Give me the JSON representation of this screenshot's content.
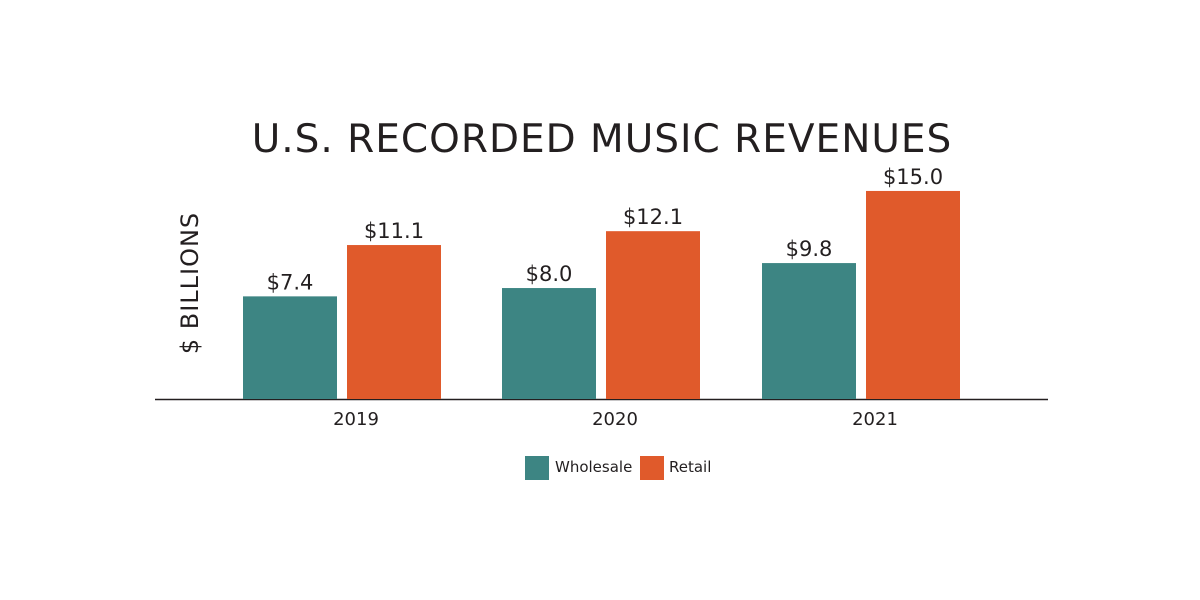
{
  "chart_data": {
    "type": "bar",
    "title": "U.S. RECORDED MUSIC REVENUES",
    "xlabel": "",
    "ylabel": "$ BILLIONS",
    "categories": [
      "2019",
      "2020",
      "2021"
    ],
    "series": [
      {
        "name": "Wholesale",
        "values": [
          7.4,
          8.0,
          9.8
        ],
        "labels": [
          "$7.4",
          "$8.0",
          "$9.8"
        ],
        "color": "#3d8583"
      },
      {
        "name": "Retail",
        "values": [
          11.1,
          12.1,
          15.0
        ],
        "labels": [
          "$11.1",
          "$12.1",
          "$15.0"
        ],
        "color": "#e05a2b"
      }
    ],
    "ylim": [
      0,
      15
    ],
    "grid": false,
    "legend_position": "bottom-center"
  }
}
